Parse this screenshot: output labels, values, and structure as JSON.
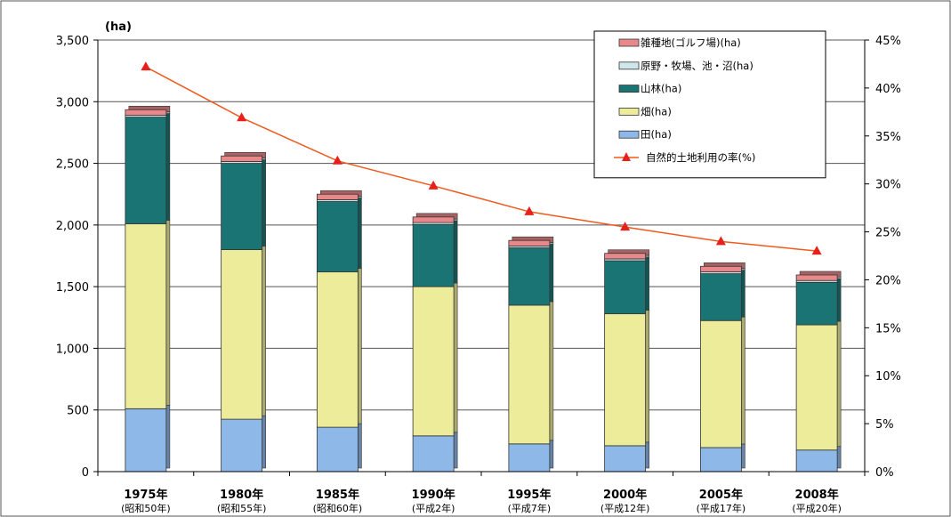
{
  "chart_data": {
    "type": "bar",
    "stacked": true,
    "categories": [
      "1975年",
      "1980年",
      "1985年",
      "1990年",
      "1995年",
      "2000年",
      "2005年",
      "2008年"
    ],
    "category_sublabels": [
      "(昭和50年)",
      "(昭和55年)",
      "(昭和60年)",
      "(平成2年)",
      "(平成7年)",
      "(平成12年)",
      "(平成17年)",
      "(平成20年)"
    ],
    "ylabel": "(ha)",
    "ylim": [
      0,
      3500
    ],
    "y_ticks": [
      "0",
      "500",
      "1,000",
      "1,500",
      "2,000",
      "2,500",
      "3,000",
      "3,500"
    ],
    "y2lim": [
      0,
      45
    ],
    "y2_ticks": [
      "0%",
      "5%",
      "10%",
      "15%",
      "20%",
      "25%",
      "30%",
      "35%",
      "40%",
      "45%"
    ],
    "grid": true,
    "legend_position": "top-right",
    "series": [
      {
        "name": "田(ha)",
        "color": "#8eb8e8",
        "values": [
          510,
          425,
          360,
          290,
          225,
          210,
          195,
          175
        ]
      },
      {
        "name": "畑(ha)",
        "color": "#ecec9a",
        "values": [
          1500,
          1375,
          1260,
          1210,
          1125,
          1070,
          1030,
          1015
        ]
      },
      {
        "name": "山林(ha)",
        "color": "#1b7474",
        "values": [
          865,
          700,
          570,
          505,
          465,
          430,
          380,
          345
        ]
      },
      {
        "name": "原野・牧場、池・沼(ha)",
        "color": "#cfe7ea",
        "values": [
          15,
          15,
          15,
          15,
          15,
          15,
          15,
          15
        ]
      },
      {
        "name": "雑種地(ゴルフ場)(ha)",
        "color": "#e8888a",
        "values": [
          45,
          45,
          45,
          45,
          45,
          45,
          45,
          45
        ]
      }
    ],
    "line_series": {
      "name": "自然的土地利用の率(%)",
      "color": "#ee5a1e",
      "axis": "right",
      "values": [
        42.2,
        36.9,
        32.4,
        29.8,
        27.1,
        25.5,
        24.0,
        23.0
      ]
    }
  }
}
